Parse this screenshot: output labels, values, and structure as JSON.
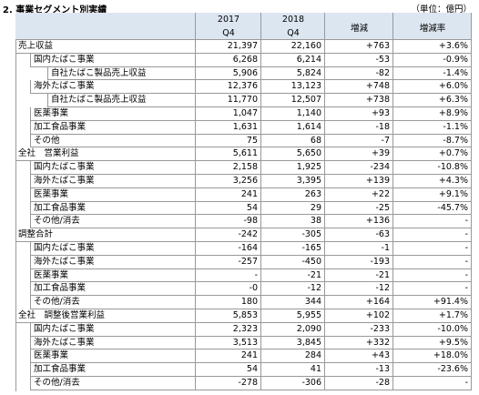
{
  "header": {
    "title": "2. 事業セグメント別実績",
    "unit": "（単位：億円）"
  },
  "table": {
    "columns": [
      {
        "year": "2017",
        "period": "Q4"
      },
      {
        "year": "2018",
        "period": "Q4"
      },
      {
        "label": "増減"
      },
      {
        "label": "増減率"
      }
    ],
    "sections": [
      {
        "label": "売上収益",
        "cells": [
          "21,397",
          "22,160",
          "+763",
          "+3.6%"
        ],
        "items": [
          {
            "label": "国内たばこ事業",
            "cells": [
              "6,268",
              "6,214",
              "-53",
              "-0.9%"
            ],
            "items": [
              {
                "label": "自社たばこ製品売上収益",
                "cells": [
                  "5,906",
                  "5,824",
                  "-82",
                  "-1.4%"
                ]
              }
            ]
          },
          {
            "label": "海外たばこ事業",
            "cells": [
              "12,376",
              "13,123",
              "+748",
              "+6.0%"
            ],
            "items": [
              {
                "label": "自社たばこ製品売上収益",
                "cells": [
                  "11,770",
                  "12,507",
                  "+738",
                  "+6.3%"
                ]
              }
            ]
          },
          {
            "label": "医薬事業",
            "cells": [
              "1,047",
              "1,140",
              "+93",
              "+8.9%"
            ]
          },
          {
            "label": "加工食品事業",
            "cells": [
              "1,631",
              "1,614",
              "-18",
              "-1.1%"
            ]
          },
          {
            "label": "その他",
            "cells": [
              "75",
              "68",
              "-7",
              "-8.7%"
            ]
          }
        ]
      },
      {
        "label": "全社　営業利益",
        "cells": [
          "5,611",
          "5,650",
          "+39",
          "+0.7%"
        ],
        "items": [
          {
            "label": "国内たばこ事業",
            "cells": [
              "2,158",
              "1,925",
              "-234",
              "-10.8%"
            ]
          },
          {
            "label": "海外たばこ事業",
            "cells": [
              "3,256",
              "3,395",
              "+139",
              "+4.3%"
            ]
          },
          {
            "label": "医薬事業",
            "cells": [
              "241",
              "263",
              "+22",
              "+9.1%"
            ]
          },
          {
            "label": "加工食品事業",
            "cells": [
              "54",
              "29",
              "-25",
              "-45.7%"
            ]
          },
          {
            "label": "その他/消去",
            "cells": [
              "-98",
              "38",
              "+136",
              "-"
            ]
          }
        ]
      },
      {
        "label": "調整合計",
        "cells": [
          "-242",
          "-305",
          "-63",
          "-"
        ],
        "items": [
          {
            "label": "国内たばこ事業",
            "cells": [
              "-164",
              "-165",
              "-1",
              "-"
            ]
          },
          {
            "label": "海外たばこ事業",
            "cells": [
              "-257",
              "-450",
              "-193",
              "-"
            ]
          },
          {
            "label": "医薬事業",
            "cells": [
              "-",
              "-21",
              "-21",
              "-"
            ]
          },
          {
            "label": "加工食品事業",
            "cells": [
              "-0",
              "-12",
              "-12",
              "-"
            ]
          },
          {
            "label": "その他/消去",
            "cells": [
              "180",
              "344",
              "+164",
              "+91.4%"
            ]
          }
        ]
      },
      {
        "label": "全社　調整後営業利益",
        "cells": [
          "5,853",
          "5,955",
          "+102",
          "+1.7%"
        ],
        "items": [
          {
            "label": "国内たばこ事業",
            "cells": [
              "2,323",
              "2,090",
              "-233",
              "-10.0%"
            ]
          },
          {
            "label": "海外たばこ事業",
            "cells": [
              "3,513",
              "3,845",
              "+332",
              "+9.5%"
            ]
          },
          {
            "label": "医薬事業",
            "cells": [
              "241",
              "284",
              "+43",
              "+18.0%"
            ]
          },
          {
            "label": "加工食品事業",
            "cells": [
              "54",
              "41",
              "-13",
              "-23.6%"
            ]
          },
          {
            "label": "その他/消去",
            "cells": [
              "-278",
              "-306",
              "-28",
              "-"
            ]
          }
        ]
      }
    ]
  }
}
